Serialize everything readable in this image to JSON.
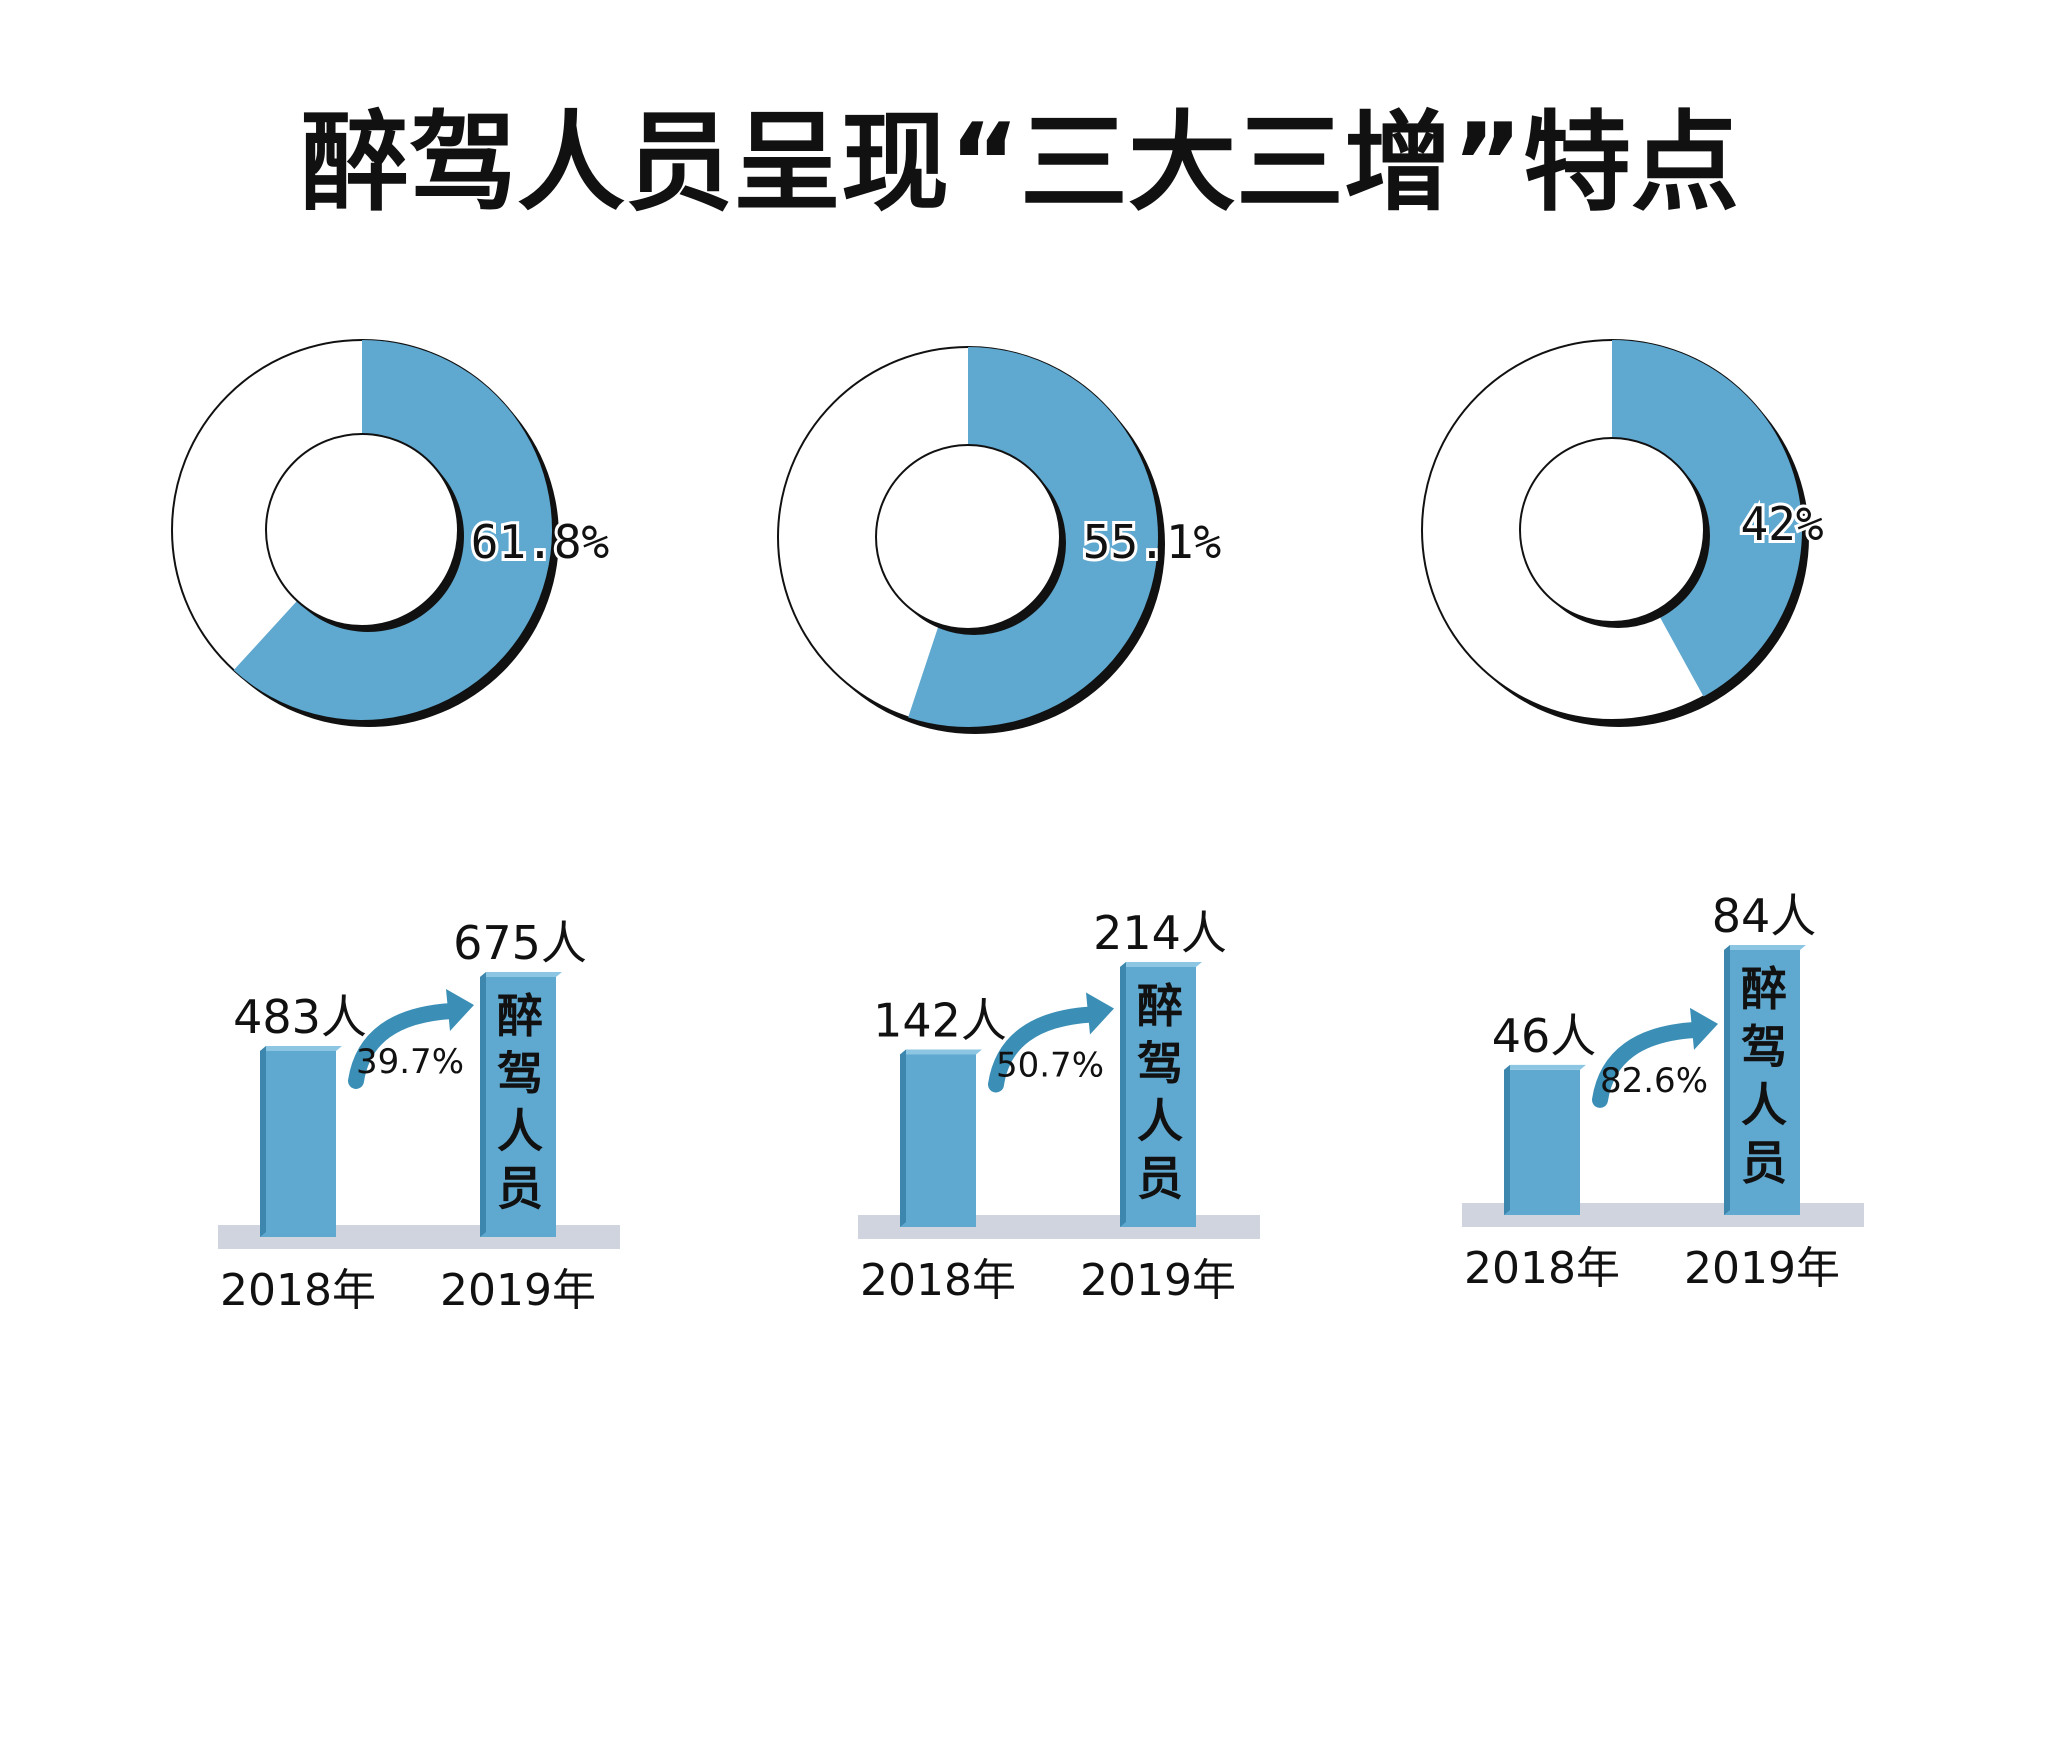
{
  "title": "醉驾人员呈现“三大三增”特点",
  "colors": {
    "accent": "#5fa8cf",
    "accent_dark": "#3d86ad",
    "accent_top": "#8cc6e3",
    "base": "#cfd4de",
    "ring_outline": "#111111",
    "arrow": "#3b8fb6"
  },
  "chart_data": [
    {
      "type": "pie",
      "variant": "donut",
      "values": [
        61.8,
        38.2
      ],
      "label": "61.8%"
    },
    {
      "type": "pie",
      "variant": "donut",
      "values": [
        55.1,
        44.9
      ],
      "label": "55.1%"
    },
    {
      "type": "pie",
      "variant": "donut",
      "values": [
        42,
        58
      ],
      "label": "42%"
    },
    {
      "type": "bar",
      "categories": [
        "2018年",
        "2019年"
      ],
      "values": [
        483,
        675
      ],
      "value_labels": [
        "483人",
        "675人"
      ],
      "growth_label": "39.7%",
      "bar_text": "醉驾人员"
    },
    {
      "type": "bar",
      "categories": [
        "2018年",
        "2019年"
      ],
      "values": [
        142,
        214
      ],
      "value_labels": [
        "142人",
        "214人"
      ],
      "growth_label": "50.7%",
      "bar_text": "醉驾人员"
    },
    {
      "type": "bar",
      "categories": [
        "2018年",
        "2019年"
      ],
      "values": [
        46,
        84
      ],
      "value_labels": [
        "46人",
        "84人"
      ],
      "growth_label": "82.6%",
      "bar_text": "醉驾人员"
    }
  ]
}
